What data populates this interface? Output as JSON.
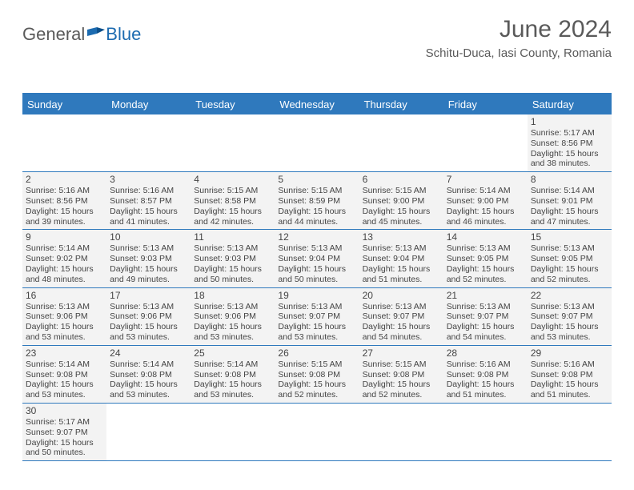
{
  "logo": {
    "part1": "General",
    "part2": "Blue"
  },
  "title": "June 2024",
  "location": "Schitu-Duca, Iasi County, Romania",
  "weekdays": [
    "Sunday",
    "Monday",
    "Tuesday",
    "Wednesday",
    "Thursday",
    "Friday",
    "Saturday"
  ],
  "colors": {
    "header_bg": "#2f79bd",
    "header_text": "#ffffff",
    "cell_bg": "#f3f3f3",
    "text": "#444444",
    "rule": "#2f79bd"
  },
  "weeks": [
    [
      {
        "blank": true
      },
      {
        "blank": true
      },
      {
        "blank": true
      },
      {
        "blank": true
      },
      {
        "blank": true
      },
      {
        "blank": true
      },
      {
        "n": "1",
        "sunrise": "Sunrise: 5:17 AM",
        "sunset": "Sunset: 8:56 PM",
        "d1": "Daylight: 15 hours",
        "d2": "and 38 minutes."
      }
    ],
    [
      {
        "n": "2",
        "sunrise": "Sunrise: 5:16 AM",
        "sunset": "Sunset: 8:56 PM",
        "d1": "Daylight: 15 hours",
        "d2": "and 39 minutes."
      },
      {
        "n": "3",
        "sunrise": "Sunrise: 5:16 AM",
        "sunset": "Sunset: 8:57 PM",
        "d1": "Daylight: 15 hours",
        "d2": "and 41 minutes."
      },
      {
        "n": "4",
        "sunrise": "Sunrise: 5:15 AM",
        "sunset": "Sunset: 8:58 PM",
        "d1": "Daylight: 15 hours",
        "d2": "and 42 minutes."
      },
      {
        "n": "5",
        "sunrise": "Sunrise: 5:15 AM",
        "sunset": "Sunset: 8:59 PM",
        "d1": "Daylight: 15 hours",
        "d2": "and 44 minutes."
      },
      {
        "n": "6",
        "sunrise": "Sunrise: 5:15 AM",
        "sunset": "Sunset: 9:00 PM",
        "d1": "Daylight: 15 hours",
        "d2": "and 45 minutes."
      },
      {
        "n": "7",
        "sunrise": "Sunrise: 5:14 AM",
        "sunset": "Sunset: 9:00 PM",
        "d1": "Daylight: 15 hours",
        "d2": "and 46 minutes."
      },
      {
        "n": "8",
        "sunrise": "Sunrise: 5:14 AM",
        "sunset": "Sunset: 9:01 PM",
        "d1": "Daylight: 15 hours",
        "d2": "and 47 minutes."
      }
    ],
    [
      {
        "n": "9",
        "sunrise": "Sunrise: 5:14 AM",
        "sunset": "Sunset: 9:02 PM",
        "d1": "Daylight: 15 hours",
        "d2": "and 48 minutes."
      },
      {
        "n": "10",
        "sunrise": "Sunrise: 5:13 AM",
        "sunset": "Sunset: 9:03 PM",
        "d1": "Daylight: 15 hours",
        "d2": "and 49 minutes."
      },
      {
        "n": "11",
        "sunrise": "Sunrise: 5:13 AM",
        "sunset": "Sunset: 9:03 PM",
        "d1": "Daylight: 15 hours",
        "d2": "and 50 minutes."
      },
      {
        "n": "12",
        "sunrise": "Sunrise: 5:13 AM",
        "sunset": "Sunset: 9:04 PM",
        "d1": "Daylight: 15 hours",
        "d2": "and 50 minutes."
      },
      {
        "n": "13",
        "sunrise": "Sunrise: 5:13 AM",
        "sunset": "Sunset: 9:04 PM",
        "d1": "Daylight: 15 hours",
        "d2": "and 51 minutes."
      },
      {
        "n": "14",
        "sunrise": "Sunrise: 5:13 AM",
        "sunset": "Sunset: 9:05 PM",
        "d1": "Daylight: 15 hours",
        "d2": "and 52 minutes."
      },
      {
        "n": "15",
        "sunrise": "Sunrise: 5:13 AM",
        "sunset": "Sunset: 9:05 PM",
        "d1": "Daylight: 15 hours",
        "d2": "and 52 minutes."
      }
    ],
    [
      {
        "n": "16",
        "sunrise": "Sunrise: 5:13 AM",
        "sunset": "Sunset: 9:06 PM",
        "d1": "Daylight: 15 hours",
        "d2": "and 53 minutes."
      },
      {
        "n": "17",
        "sunrise": "Sunrise: 5:13 AM",
        "sunset": "Sunset: 9:06 PM",
        "d1": "Daylight: 15 hours",
        "d2": "and 53 minutes."
      },
      {
        "n": "18",
        "sunrise": "Sunrise: 5:13 AM",
        "sunset": "Sunset: 9:06 PM",
        "d1": "Daylight: 15 hours",
        "d2": "and 53 minutes."
      },
      {
        "n": "19",
        "sunrise": "Sunrise: 5:13 AM",
        "sunset": "Sunset: 9:07 PM",
        "d1": "Daylight: 15 hours",
        "d2": "and 53 minutes."
      },
      {
        "n": "20",
        "sunrise": "Sunrise: 5:13 AM",
        "sunset": "Sunset: 9:07 PM",
        "d1": "Daylight: 15 hours",
        "d2": "and 54 minutes."
      },
      {
        "n": "21",
        "sunrise": "Sunrise: 5:13 AM",
        "sunset": "Sunset: 9:07 PM",
        "d1": "Daylight: 15 hours",
        "d2": "and 54 minutes."
      },
      {
        "n": "22",
        "sunrise": "Sunrise: 5:13 AM",
        "sunset": "Sunset: 9:07 PM",
        "d1": "Daylight: 15 hours",
        "d2": "and 53 minutes."
      }
    ],
    [
      {
        "n": "23",
        "sunrise": "Sunrise: 5:14 AM",
        "sunset": "Sunset: 9:08 PM",
        "d1": "Daylight: 15 hours",
        "d2": "and 53 minutes."
      },
      {
        "n": "24",
        "sunrise": "Sunrise: 5:14 AM",
        "sunset": "Sunset: 9:08 PM",
        "d1": "Daylight: 15 hours",
        "d2": "and 53 minutes."
      },
      {
        "n": "25",
        "sunrise": "Sunrise: 5:14 AM",
        "sunset": "Sunset: 9:08 PM",
        "d1": "Daylight: 15 hours",
        "d2": "and 53 minutes."
      },
      {
        "n": "26",
        "sunrise": "Sunrise: 5:15 AM",
        "sunset": "Sunset: 9:08 PM",
        "d1": "Daylight: 15 hours",
        "d2": "and 52 minutes."
      },
      {
        "n": "27",
        "sunrise": "Sunrise: 5:15 AM",
        "sunset": "Sunset: 9:08 PM",
        "d1": "Daylight: 15 hours",
        "d2": "and 52 minutes."
      },
      {
        "n": "28",
        "sunrise": "Sunrise: 5:16 AM",
        "sunset": "Sunset: 9:08 PM",
        "d1": "Daylight: 15 hours",
        "d2": "and 51 minutes."
      },
      {
        "n": "29",
        "sunrise": "Sunrise: 5:16 AM",
        "sunset": "Sunset: 9:08 PM",
        "d1": "Daylight: 15 hours",
        "d2": "and 51 minutes."
      }
    ],
    [
      {
        "n": "30",
        "sunrise": "Sunrise: 5:17 AM",
        "sunset": "Sunset: 9:07 PM",
        "d1": "Daylight: 15 hours",
        "d2": "and 50 minutes."
      },
      {
        "blank": true
      },
      {
        "blank": true
      },
      {
        "blank": true
      },
      {
        "blank": true
      },
      {
        "blank": true
      },
      {
        "blank": true
      }
    ]
  ]
}
